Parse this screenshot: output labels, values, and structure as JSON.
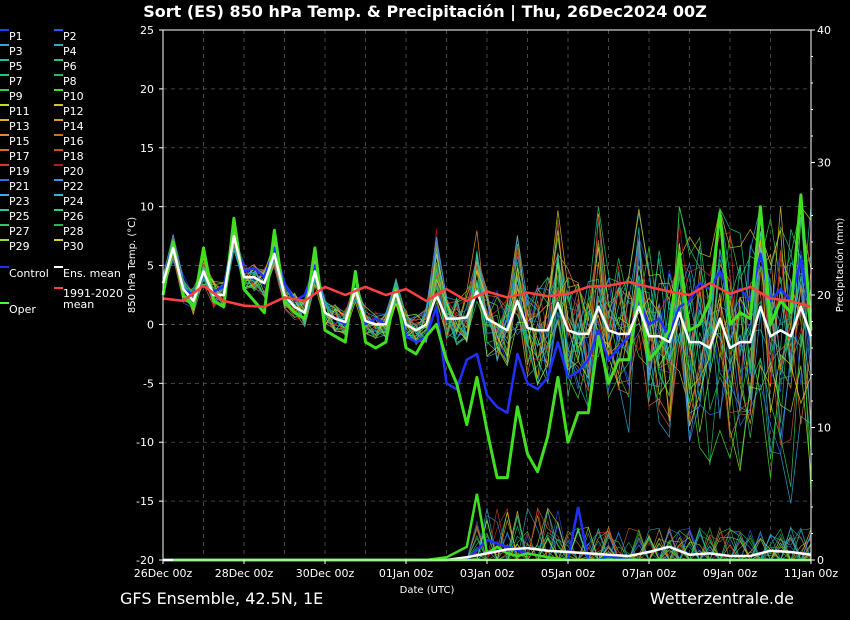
{
  "title": "Sort  (ES)  850 hPa Temp. & Precipitación | Thu, 26Dec2024 00Z",
  "footer": {
    "left": "GFS Ensemble, 42.5N, 1E",
    "right": "Wetterzentrale.de"
  },
  "legend": [
    {
      "label": "P1",
      "color": "#1f3fff"
    },
    {
      "label": "P2",
      "color": "#2a56ff"
    },
    {
      "label": "P3",
      "color": "#2aa8d8"
    },
    {
      "label": "P4",
      "color": "#1fb0c8"
    },
    {
      "label": "P5",
      "color": "#20c0b0"
    },
    {
      "label": "P6",
      "color": "#18c890"
    },
    {
      "label": "P7",
      "color": "#18c878"
    },
    {
      "label": "P8",
      "color": "#20b860"
    },
    {
      "label": "P9",
      "color": "#30d040"
    },
    {
      "label": "P10",
      "color": "#40e020"
    },
    {
      "label": "P11",
      "color": "#c8d820"
    },
    {
      "label": "P12",
      "color": "#d8c020"
    },
    {
      "label": "P13",
      "color": "#e0b020"
    },
    {
      "label": "P14",
      "color": "#e09a28"
    },
    {
      "label": "P15",
      "color": "#d88848"
    },
    {
      "label": "P16",
      "color": "#c87028"
    },
    {
      "label": "P17",
      "color": "#e06830"
    },
    {
      "label": "P18",
      "color": "#d04828"
    },
    {
      "label": "P19",
      "color": "#e03020"
    },
    {
      "label": "P20",
      "color": "#b81818"
    },
    {
      "label": "P21",
      "color": "#3070e0"
    },
    {
      "label": "P22",
      "color": "#3890f0"
    },
    {
      "label": "P23",
      "color": "#40a8e8"
    },
    {
      "label": "P24",
      "color": "#30b8d0"
    },
    {
      "label": "P25",
      "color": "#28c8a8"
    },
    {
      "label": "P26",
      "color": "#20d090"
    },
    {
      "label": "P27",
      "color": "#30c860"
    },
    {
      "label": "P28",
      "color": "#20b848"
    },
    {
      "label": "P29",
      "color": "#90e030"
    },
    {
      "label": "P30",
      "color": "#d8d020"
    },
    {
      "label": "Control",
      "color": "#2030ff"
    },
    {
      "label": "Ens. mean",
      "color": "#ffffff"
    },
    {
      "label": "Oper",
      "color": "#40ff40"
    },
    {
      "label": "1991-2020 mean",
      "color": "#ff4040"
    }
  ],
  "chart_data": {
    "type": "line",
    "ylabel": "850 hPa Temp. (°C)",
    "y2label": "Precipitación (mm)",
    "xlabel": "Date (UTC)",
    "ylim": [
      -20,
      25
    ],
    "y2lim": [
      0,
      40
    ],
    "xlim_days": [
      0,
      16
    ],
    "yticks": [
      "25",
      "20",
      "15",
      "10",
      "5",
      "0",
      "-5",
      "-10",
      "-15",
      "-20"
    ],
    "y2ticks": [
      "40",
      "30",
      "20",
      "10",
      "0"
    ],
    "xticks": [
      {
        "day": 0,
        "label": "26Dec 00z"
      },
      {
        "day": 2,
        "label": "28Dec 00z"
      },
      {
        "day": 4,
        "label": "30Dec 00z"
      },
      {
        "day": 6,
        "label": "01Jan 00z"
      },
      {
        "day": 8,
        "label": "03Jan 00z"
      },
      {
        "day": 10,
        "label": "05Jan 00z"
      },
      {
        "day": 12,
        "label": "07Jan 00z"
      },
      {
        "day": 14,
        "label": "09Jan 00z"
      },
      {
        "day": 16,
        "label": "11Jan 00z"
      }
    ],
    "grid": true,
    "series": [
      {
        "name": "Control",
        "color": "#2030ff",
        "width": 2.5,
        "x": [
          0,
          0.25,
          0.5,
          0.75,
          1,
          1.25,
          1.5,
          1.75,
          2,
          2.25,
          2.5,
          2.75,
          3,
          3.25,
          3.5,
          3.75,
          4,
          4.25,
          4.5,
          4.75,
          5,
          5.25,
          5.5,
          5.75,
          6,
          6.25,
          6.5,
          6.75,
          7,
          7.25,
          7.5,
          7.75,
          8,
          8.25,
          8.5,
          8.75,
          9,
          9.25,
          9.5,
          9.75,
          10,
          10.25,
          10.5,
          10.75,
          11,
          11.25,
          11.5,
          11.75,
          12,
          12.25,
          12.5,
          12.75,
          13,
          13.25,
          13.5,
          13.75,
          14,
          14.25,
          14.5,
          14.75,
          15,
          15.25,
          15.5,
          15.75,
          16
        ],
        "y": [
          3.5,
          7,
          3,
          2.5,
          4.5,
          2.8,
          3.2,
          7.5,
          4.5,
          4.8,
          4,
          6.5,
          3.5,
          2,
          2.5,
          5,
          1,
          0.5,
          0,
          3.5,
          0,
          0.5,
          0,
          2.5,
          -1,
          -1.5,
          -1,
          1.5,
          -5,
          -5.5,
          -3,
          -2.5,
          -6,
          -7,
          -7.5,
          -2.5,
          -5,
          -5.5,
          -4.5,
          -1.5,
          -4.5,
          -4,
          -3,
          -0.5,
          -3,
          -2,
          -1,
          2,
          0,
          0.5,
          -1,
          1.5,
          2,
          3.5,
          3,
          4.5,
          2.5,
          3,
          2,
          6,
          2,
          3,
          2,
          5.5,
          1
        ]
      },
      {
        "name": "Oper",
        "color": "#40e020",
        "width": 3,
        "x": [
          0,
          0.25,
          0.5,
          0.75,
          1,
          1.25,
          1.5,
          1.75,
          2,
          2.25,
          2.5,
          2.75,
          3,
          3.25,
          3.5,
          3.75,
          4,
          4.25,
          4.5,
          4.75,
          5,
          5.25,
          5.5,
          5.75,
          6,
          6.25,
          6.5,
          6.75,
          7,
          7.25,
          7.5,
          7.75,
          8,
          8.25,
          8.5,
          8.75,
          9,
          9.25,
          9.5,
          9.75,
          10,
          10.25,
          10.5,
          10.75,
          11,
          11.25,
          11.5,
          11.75,
          12,
          12.25,
          12.5,
          12.75,
          13,
          13.25,
          13.5,
          13.75,
          14,
          14.25,
          14.5,
          14.75,
          15,
          15.25,
          15.5,
          15.75,
          16
        ],
        "y": [
          2.5,
          7,
          2.5,
          1.5,
          6.5,
          2,
          1.5,
          9,
          3,
          2,
          1,
          8,
          2,
          1,
          0.5,
          6.5,
          -0.5,
          -1,
          -1.5,
          4.5,
          -1.5,
          -2,
          -1.5,
          3,
          -2,
          -2.5,
          -1,
          0,
          -3,
          -5,
          -8.5,
          -4.5,
          -9,
          -13,
          -13,
          -7,
          -11,
          -12.5,
          -9.5,
          -4.5,
          -10,
          -7.5,
          -7.5,
          -1,
          -5,
          -3,
          -3,
          3,
          -3,
          -2,
          -0.5,
          6,
          -0.5,
          0,
          2,
          9.5,
          0,
          1,
          0.5,
          10,
          0,
          2,
          1,
          11,
          -0.5
        ]
      },
      {
        "name": "Ens. mean",
        "color": "#ffffff",
        "width": 2.5,
        "x": [
          0,
          0.25,
          0.5,
          0.75,
          1,
          1.25,
          1.5,
          1.75,
          2,
          2.25,
          2.5,
          2.75,
          3,
          3.25,
          3.5,
          3.75,
          4,
          4.25,
          4.5,
          4.75,
          5,
          5.25,
          5.5,
          5.75,
          6,
          6.25,
          6.5,
          6.75,
          7,
          7.25,
          7.5,
          7.75,
          8,
          8.25,
          8.5,
          8.75,
          9,
          9.25,
          9.5,
          9.75,
          10,
          10.25,
          10.5,
          10.75,
          11,
          11.25,
          11.5,
          11.75,
          12,
          12.25,
          12.5,
          12.75,
          13,
          13.25,
          13.5,
          13.75,
          14,
          14.25,
          14.5,
          14.75,
          15,
          15.25,
          15.5,
          15.75,
          16
        ],
        "y": [
          3.5,
          6.5,
          3,
          2,
          4.5,
          2.5,
          2.5,
          7.5,
          4,
          4,
          3.5,
          6,
          2.5,
          1.5,
          1,
          4.5,
          1,
          0.5,
          0.2,
          3,
          0.3,
          0,
          0,
          2.8,
          0,
          -0.5,
          0,
          2.5,
          0.5,
          0.5,
          0.6,
          2.8,
          0.5,
          0,
          -0.5,
          2,
          -0.3,
          -0.5,
          -0.5,
          1.8,
          -0.5,
          -0.8,
          -0.8,
          1.5,
          -0.5,
          -0.8,
          -0.8,
          1.5,
          -1,
          -1,
          -1.5,
          1,
          -1.5,
          -1.5,
          -2,
          0.5,
          -2,
          -1.5,
          -1.5,
          1.5,
          -1,
          -0.5,
          -1,
          1.5,
          -1
        ]
      },
      {
        "name": "1991-2020 mean",
        "color": "#ff4040",
        "width": 2.5,
        "x": [
          0,
          0.5,
          1,
          1.5,
          2,
          2.5,
          3,
          3.5,
          4,
          4.5,
          5,
          5.5,
          6,
          6.5,
          7,
          7.5,
          8,
          8.5,
          9,
          9.5,
          10,
          10.5,
          11,
          11.5,
          12,
          12.5,
          13,
          13.5,
          14,
          14.5,
          15,
          15.5,
          16
        ],
        "y": [
          2.2,
          2,
          3.3,
          2,
          1.6,
          1.5,
          2.3,
          2,
          3.2,
          2.5,
          3.2,
          2.5,
          3,
          2,
          3,
          2,
          2.8,
          2.3,
          2.7,
          2.4,
          2.6,
          3.2,
          3.3,
          3.6,
          3.2,
          2.8,
          2.5,
          3.5,
          2.6,
          3.2,
          2.2,
          2,
          1.5
        ]
      }
    ],
    "precip": [
      {
        "name": "Control precip",
        "color": "#2030ff",
        "x": [
          0,
          7.5,
          8,
          8.5,
          9,
          9.5,
          10,
          10.25,
          10.5,
          10.75,
          11,
          11.5,
          12,
          13,
          14,
          15,
          16
        ],
        "y": [
          0,
          0,
          1.5,
          1,
          0.5,
          0.2,
          0,
          4,
          0,
          0,
          0.3,
          0,
          0,
          0,
          0,
          0,
          0
        ]
      },
      {
        "name": "Oper precip",
        "color": "#40e020",
        "x": [
          0,
          6.5,
          7,
          7.5,
          7.75,
          8,
          8.25,
          8.5,
          8.75,
          9,
          9.5,
          10,
          11,
          12,
          13,
          14,
          15,
          16
        ],
        "y": [
          0,
          0,
          0.2,
          1,
          5,
          0.5,
          1,
          0.5,
          0.3,
          0.5,
          0.2,
          0,
          0,
          0,
          0,
          0,
          0,
          0
        ]
      },
      {
        "name": "Ens. mean precip",
        "color": "#ffffff",
        "x": [
          0,
          7,
          7.5,
          8,
          8.5,
          9,
          9.5,
          10,
          10.5,
          11,
          11.5,
          12,
          12.5,
          13,
          13.5,
          14,
          14.5,
          15,
          15.5,
          16
        ],
        "y": [
          0,
          0,
          0.2,
          0.5,
          0.8,
          0.9,
          0.7,
          0.6,
          0.5,
          0.4,
          0.3,
          0.6,
          1,
          0.4,
          0.5,
          0.3,
          0.3,
          0.7,
          0.6,
          0.4
        ]
      }
    ]
  }
}
